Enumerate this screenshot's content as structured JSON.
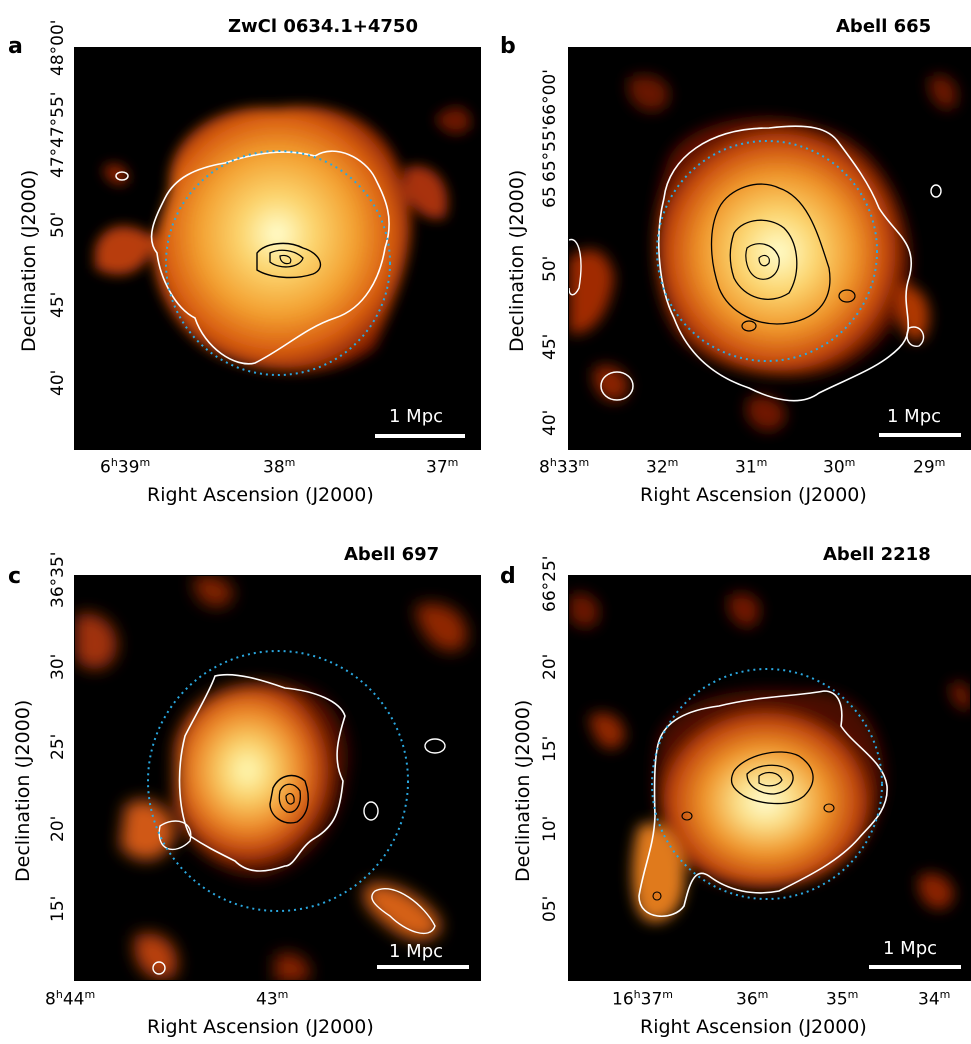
{
  "panels": [
    {
      "letter": "a",
      "title": "ZwCl 0634.1+4750",
      "ylabel": "Declination (J2000)",
      "xlabel": "Right Ascension (J2000)",
      "yticks": [
        "48°00'",
        "47°55'",
        "47°",
        "50'",
        "45'",
        "40'"
      ],
      "yticks_display": [
        "48°00'",
        "47°55'",
        "47°",
        "50'",
        "45'",
        "40'"
      ],
      "xticks": [
        "6h39m",
        "38m",
        "37m"
      ],
      "scale_label": "1 Mpc"
    },
    {
      "letter": "b",
      "title": "Abell 665",
      "ylabel": "Declination (J2000)",
      "xlabel": "Right Ascension (J2000)",
      "yticks": [
        "65°55'66°00'",
        "65",
        "50'",
        "45'",
        "40'"
      ],
      "xticks": [
        "8h33m",
        "32m",
        "31m",
        "30m",
        "29m"
      ],
      "scale_label": "1 Mpc"
    },
    {
      "letter": "c",
      "title": "Abell 697",
      "ylabel": "Declination (J2000)",
      "xlabel": "Right Ascension (J2000)",
      "yticks": [
        "36°35'",
        "30'",
        "25'",
        "20'",
        "15'"
      ],
      "xticks": [
        "8h44m",
        "43m"
      ],
      "scale_label": "1 Mpc"
    },
    {
      "letter": "d",
      "title": "Abell 2218",
      "ylabel": "Declination (J2000)",
      "xlabel": "Right Ascension (J2000)",
      "yticks": [
        "66°25'",
        "20'",
        "15'",
        "10'",
        "05'"
      ],
      "xticks": [
        "16h37m",
        "36m",
        "35m",
        "34m"
      ],
      "scale_label": "1 Mpc"
    }
  ],
  "colors": {
    "contour_outer": "#ffffff",
    "contour_inner": "#000000",
    "circle": "#2aa8e0",
    "colormap": [
      "#000000",
      "#5a0c00",
      "#b03400",
      "#e06a10",
      "#f4a030",
      "#fbd26a",
      "#ffffc0"
    ]
  }
}
